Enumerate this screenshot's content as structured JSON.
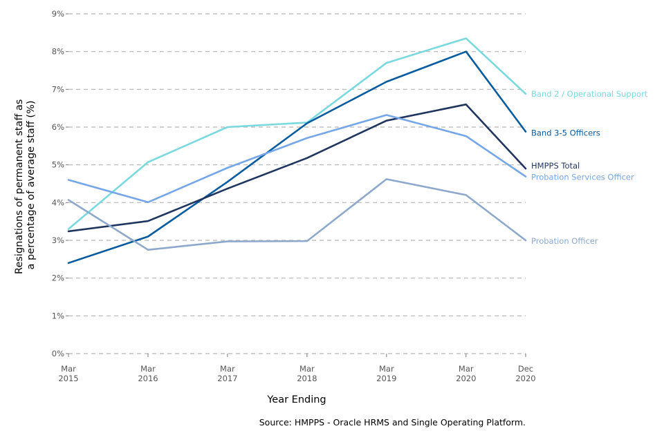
{
  "chart_data": {
    "type": "line",
    "title": "",
    "xlabel": "Year Ending",
    "ylabel_lines": [
      "Resignations of permanent staff as",
      "a percentage of average staff (%)"
    ],
    "source": "Source: HMPPS - Oracle HRMS and Single Operating Platform.",
    "x": [
      2015,
      2016,
      2017,
      2018,
      2019,
      2020,
      2020.75
    ],
    "x_tick_labels": [
      [
        "Mar",
        "2015"
      ],
      [
        "Mar",
        "2016"
      ],
      [
        "Mar",
        "2017"
      ],
      [
        "Mar",
        "2018"
      ],
      [
        "Mar",
        "2019"
      ],
      [
        "Mar",
        "2020"
      ],
      [
        "Dec",
        "2020"
      ]
    ],
    "xlim": [
      2015,
      2020.75
    ],
    "ylim": [
      0,
      9
    ],
    "y_ticks": [
      0,
      1,
      2,
      3,
      4,
      5,
      6,
      7,
      8,
      9
    ],
    "y_tick_labels": [
      "0%",
      "1%",
      "2%",
      "3%",
      "4%",
      "5%",
      "6%",
      "7%",
      "8%",
      "9%"
    ],
    "grid": true,
    "series": [
      {
        "name": "Band 2 / Operational Support",
        "color": "#79d9de",
        "values": [
          3.3,
          5.07,
          6.0,
          6.12,
          7.7,
          8.35,
          6.88
        ]
      },
      {
        "name": "Band 3-5 Officers",
        "color": "#075b9f",
        "values": [
          2.4,
          3.1,
          4.55,
          6.1,
          7.2,
          8.0,
          5.88
        ]
      },
      {
        "name": "HMPPS Total",
        "color": "#1f355e",
        "values": [
          3.24,
          3.51,
          4.37,
          5.18,
          6.17,
          6.6,
          4.9
        ]
      },
      {
        "name": "Probation Services Officer",
        "color": "#74a6e8",
        "values": [
          4.6,
          4.01,
          4.92,
          5.71,
          6.32,
          5.76,
          4.69
        ]
      },
      {
        "name": "Probation Officer",
        "color": "#8da8cb",
        "values": [
          4.07,
          2.75,
          2.97,
          2.98,
          4.62,
          4.2,
          3.0
        ]
      }
    ]
  }
}
